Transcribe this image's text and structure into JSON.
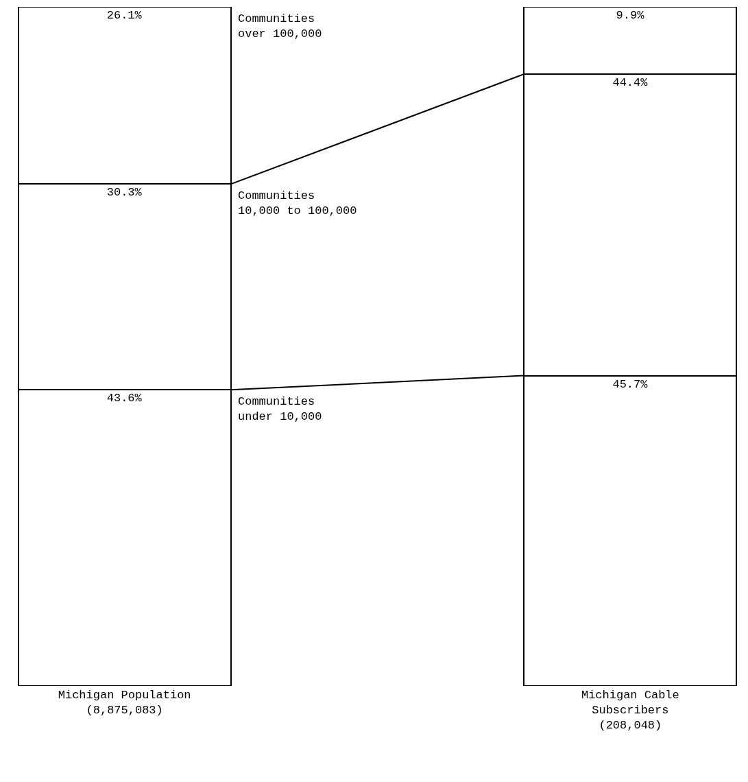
{
  "chart_data": {
    "type": "bar",
    "stacked": true,
    "legend": false,
    "categories": [
      "Michigan Population (8,875,083)",
      "Michigan Cable Subscribers (208,048)"
    ],
    "series": [
      {
        "name": "Communities under 10,000",
        "color": "#ffffff",
        "values": [
          43.6,
          45.7
        ],
        "value_labels": [
          "43.6%",
          "45.7%"
        ]
      },
      {
        "name": "Communities 10,000 to 100,000",
        "color": "#ffffff",
        "values": [
          30.3,
          44.4
        ],
        "value_labels": [
          "30.3%",
          "44.4%"
        ]
      },
      {
        "name": "Communities over 100,000",
        "color": "#ffffff",
        "values": [
          26.1,
          9.9
        ],
        "value_labels": [
          "26.1%",
          "9.9%"
        ]
      }
    ]
  }
}
